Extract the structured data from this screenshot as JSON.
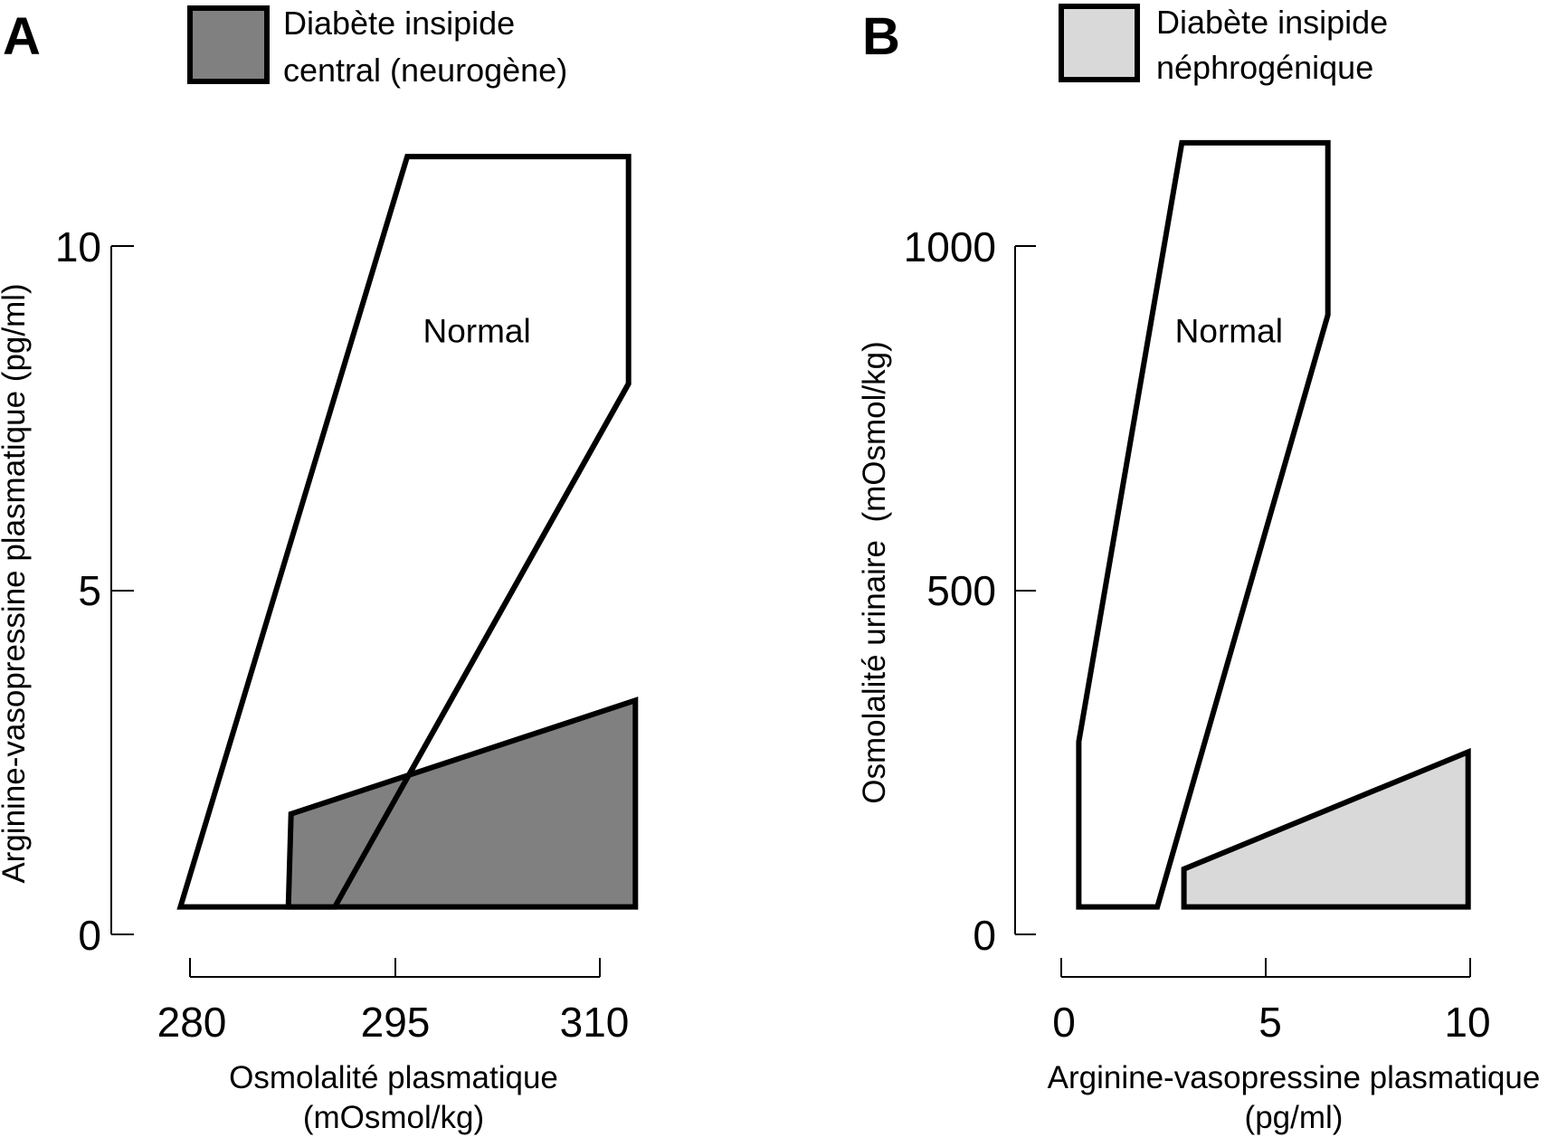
{
  "chart_data": [
    {
      "panel": "A",
      "type": "area",
      "legend": {
        "lines": [
          "Diabète insipide",
          "central (neurogène)"
        ],
        "color": "#808080"
      },
      "xlabel": [
        "Osmolalité plasmatique",
        "(mOsmol/kg)"
      ],
      "ylabel": "Arginine-vasopressine plasmatique (pg/ml)",
      "xticks": [
        "280",
        "295",
        "310"
      ],
      "yticks": [
        "0",
        "5",
        "10"
      ],
      "xlim": [
        280,
        310
      ],
      "ylim": [
        0,
        10
      ],
      "regions": [
        {
          "label": "Normal",
          "label_at": [
            301,
            8.6
          ],
          "fill": "#ffffff",
          "points": [
            [
              279.3,
              0.4
            ],
            [
              295.9,
              11.3
            ],
            [
              312.1,
              11.3
            ],
            [
              312.1,
              8.0
            ],
            [
              290.6,
              0.4
            ]
          ]
        },
        {
          "label": "",
          "fill": "#808080",
          "points": [
            [
              287.2,
              0.4
            ],
            [
              287.4,
              1.75
            ],
            [
              312.6,
              3.4
            ],
            [
              312.6,
              0.4
            ]
          ]
        },
        {
          "label": "",
          "fill": "none",
          "points": [
            [
              290.6,
              0.4
            ],
            [
              312.1,
              8.0
            ]
          ]
        }
      ]
    },
    {
      "panel": "B",
      "type": "area",
      "legend": {
        "lines": [
          "Diabète insipide",
          "néphrogénique"
        ],
        "color": "#d9d9d9"
      },
      "xlabel": [
        "Arginine-vasopressine plasmatique",
        "(pg/ml)"
      ],
      "ylabel": "Osmolalité urinaire  (mOsmol/kg)",
      "xticks": [
        "0",
        "5",
        "10"
      ],
      "yticks": [
        "0",
        "500",
        "1000"
      ],
      "xlim": [
        0,
        10
      ],
      "ylim": [
        0,
        1000
      ],
      "regions": [
        {
          "label": "Normal",
          "label_at": [
            4.1,
            860
          ],
          "fill": "#ffffff",
          "points": [
            [
              0.43,
              40
            ],
            [
              0.43,
              280
            ],
            [
              2.95,
              1150
            ],
            [
              6.52,
              1150
            ],
            [
              6.52,
              900
            ],
            [
              2.35,
              40
            ]
          ]
        },
        {
          "label": "",
          "fill": "#d9d9d9",
          "points": [
            [
              3.0,
              40
            ],
            [
              3.0,
              95
            ],
            [
              9.95,
              265
            ],
            [
              9.95,
              40
            ]
          ]
        }
      ]
    }
  ],
  "panels": {
    "A": {
      "letter": "A"
    },
    "B": {
      "letter": "B"
    }
  }
}
